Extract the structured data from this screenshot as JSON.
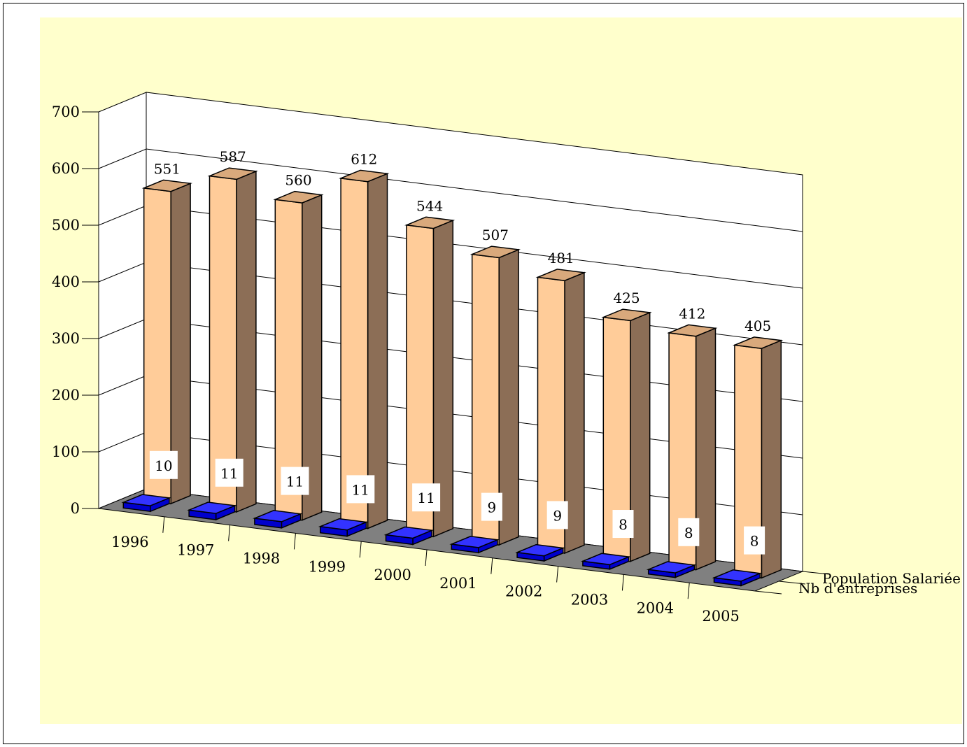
{
  "chart_data": {
    "type": "bar",
    "categories": [
      "1996",
      "1997",
      "1998",
      "1999",
      "2000",
      "2001",
      "2002",
      "2003",
      "2004",
      "2005"
    ],
    "series": [
      {
        "name": "Population Salariée",
        "values": [
          551,
          587,
          560,
          612,
          544,
          507,
          481,
          425,
          412,
          405
        ]
      },
      {
        "name": "Nb d'entreprises",
        "values": [
          10,
          11,
          11,
          11,
          11,
          9,
          9,
          8,
          8,
          8
        ]
      }
    ],
    "y_ticks": [
      "0",
      "100",
      "200",
      "300",
      "400",
      "500",
      "600",
      "700"
    ],
    "ylim": [
      0,
      700
    ],
    "grid": true,
    "three_d": true,
    "data_labels": true,
    "colors": {
      "population_front": "#FFCC99",
      "population_side": "#8C6E56",
      "population_top": "#D9A97C",
      "entreprises_front": "#0000CC",
      "entreprises_top": "#3333FF",
      "floor": "#808080",
      "background": "#FFFFCC"
    }
  }
}
